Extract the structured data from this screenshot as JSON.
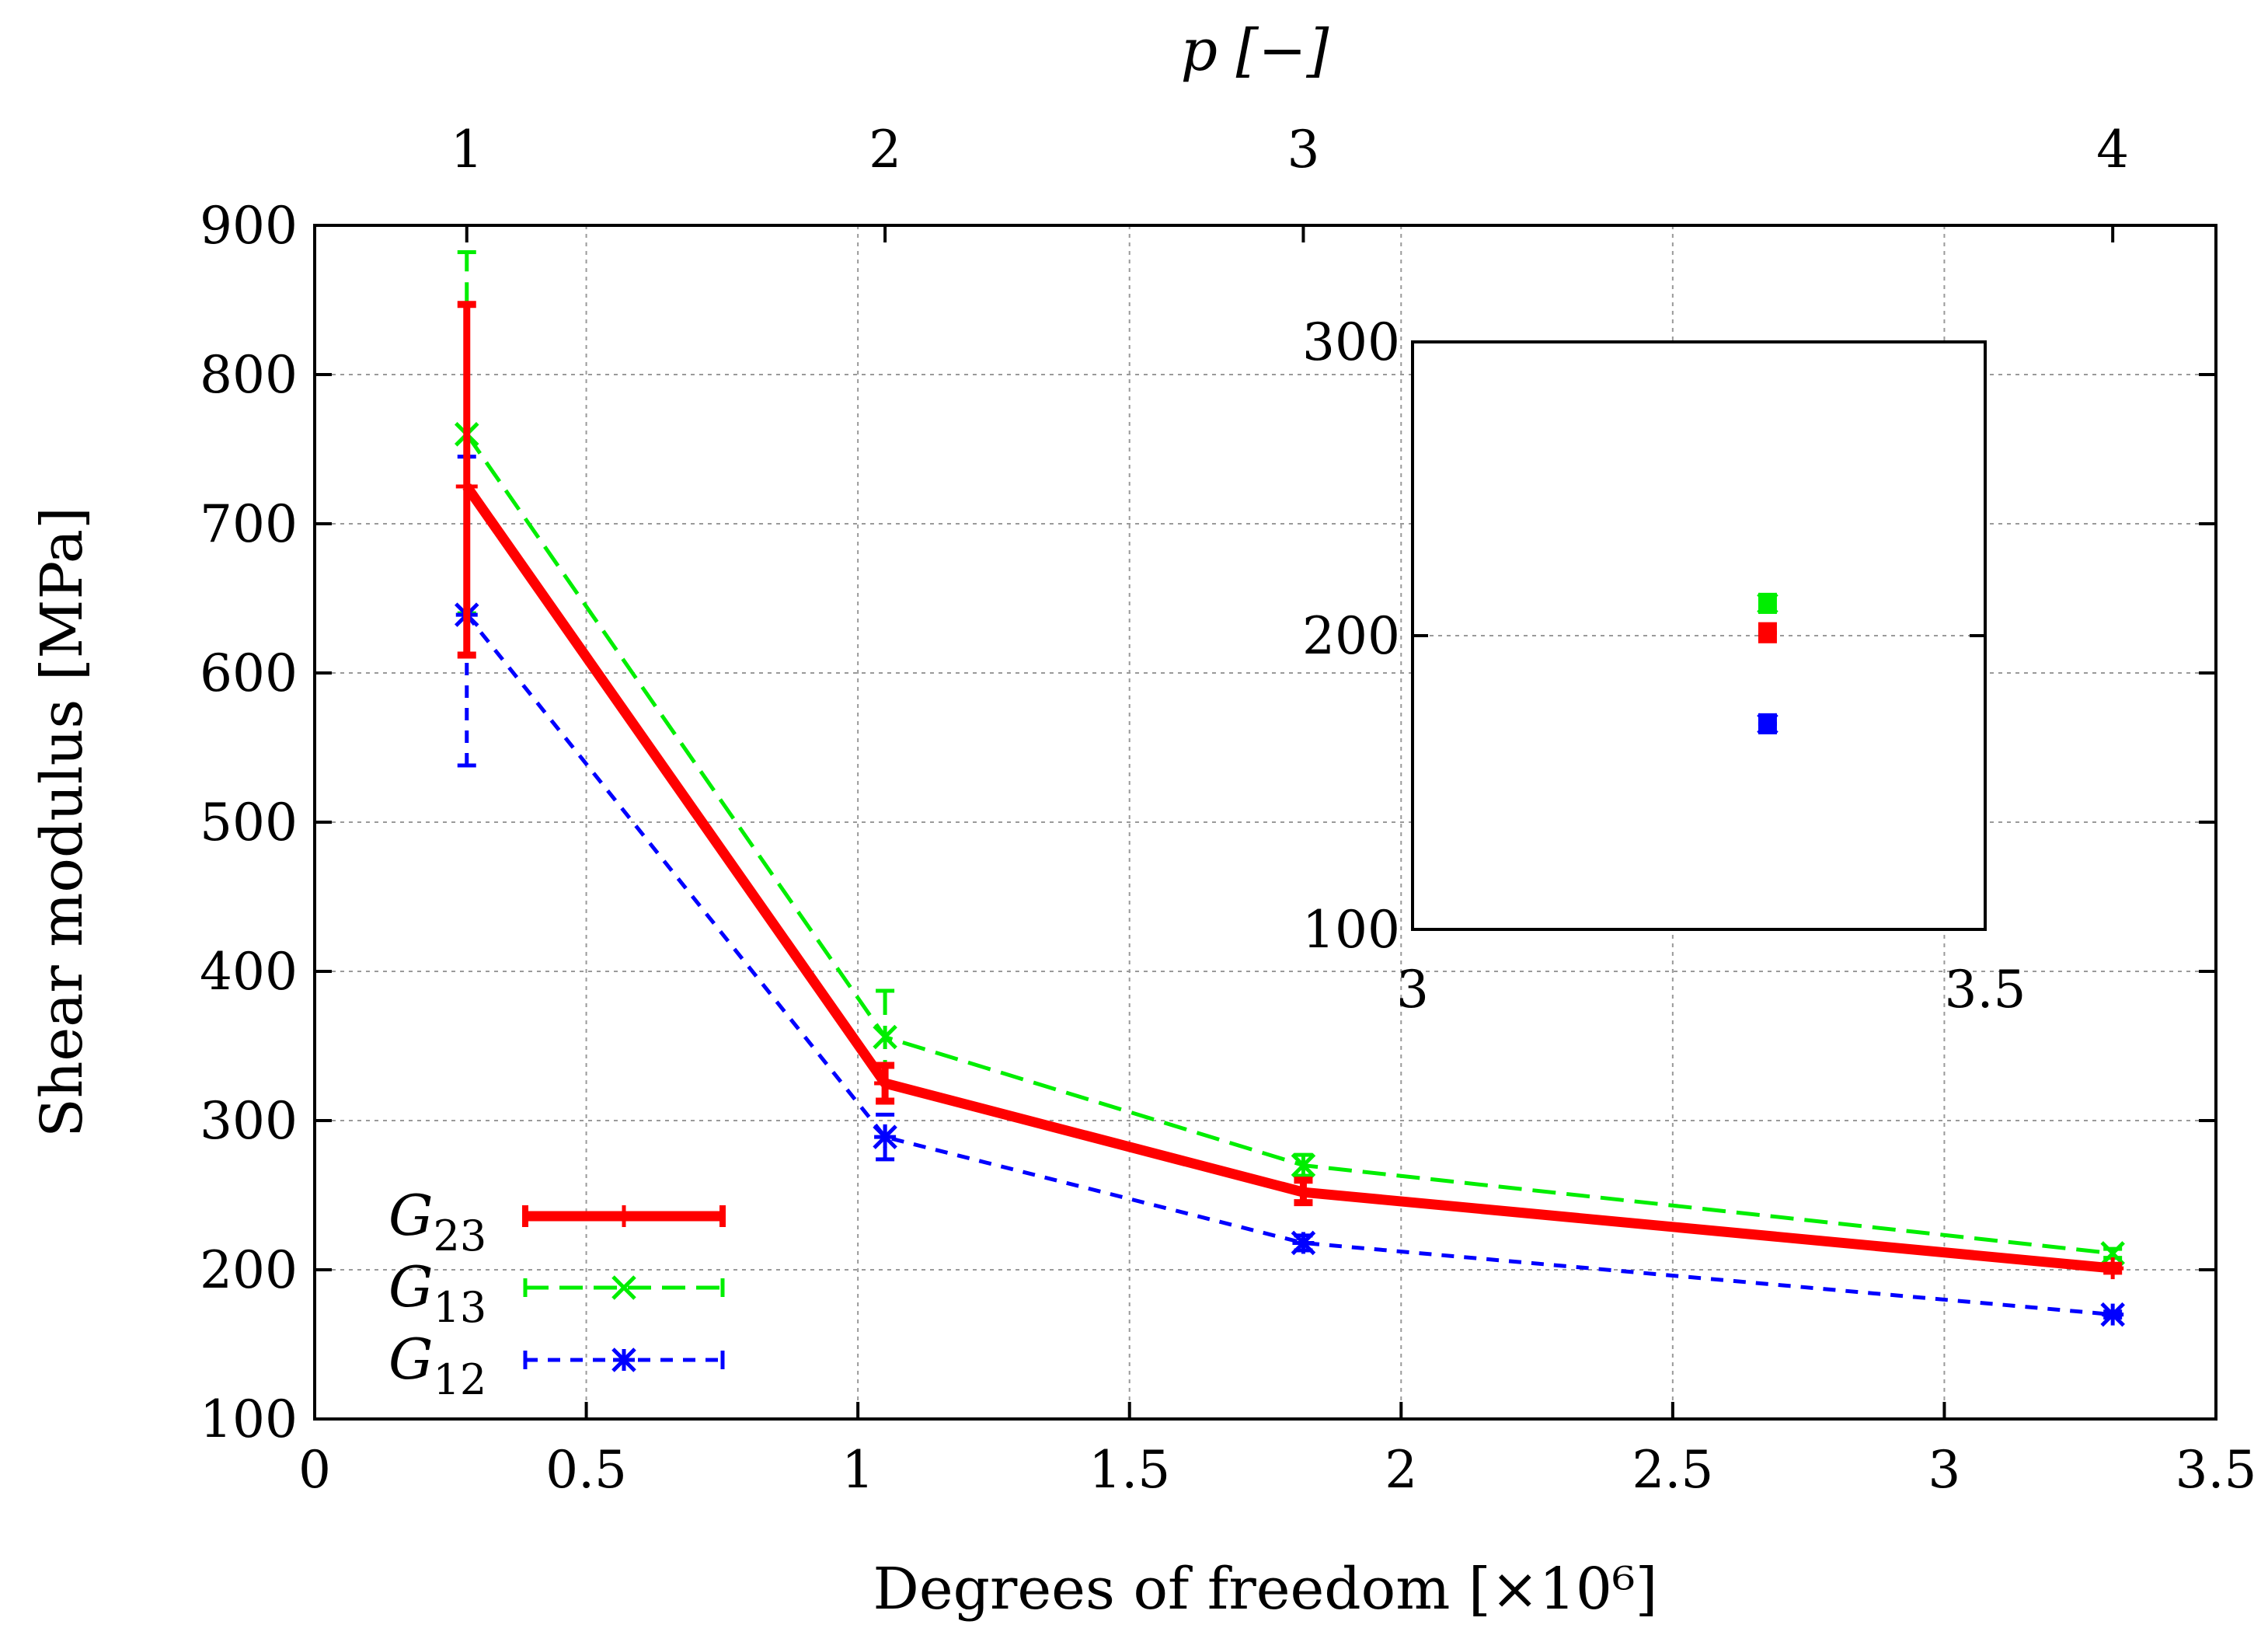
{
  "chart_data": {
    "type": "line",
    "xlabel": "Degrees of freedom [×10⁶]",
    "ylabel": "Shear modulus [MPa]",
    "top_xlabel": "p [−]",
    "xlim": [
      0,
      3.5
    ],
    "ylim": [
      100,
      900
    ],
    "x_ticks": [
      "0",
      "0.5",
      "1",
      "1.5",
      "2",
      "2.5",
      "3",
      "3.5"
    ],
    "y_ticks": [
      "100",
      "200",
      "300",
      "400",
      "500",
      "600",
      "700",
      "800",
      "900"
    ],
    "top_ticks": [
      {
        "label": "1",
        "x": 0.28
      },
      {
        "label": "2",
        "x": 1.05
      },
      {
        "label": "3",
        "x": 1.82
      },
      {
        "label": "4",
        "x": 3.31
      }
    ],
    "grid": true,
    "legend_position": "bottom-left",
    "series": [
      {
        "name": "G23",
        "name_base": "G",
        "name_sub": "23",
        "color": "#ff0000",
        "style": "solid",
        "marker": "plus",
        "x": [
          0.28,
          1.05,
          1.82,
          3.31
        ],
        "y": [
          725,
          325,
          252,
          201
        ],
        "err_low": [
          612,
          313,
          245,
          199
        ],
        "err_high": [
          847,
          337,
          260,
          203
        ]
      },
      {
        "name": "G13",
        "name_base": "G",
        "name_sub": "13",
        "color": "#00ee00",
        "style": "dashed",
        "marker": "x",
        "x": [
          0.28,
          1.05,
          1.82,
          3.31
        ],
        "y": [
          760,
          356,
          270,
          211
        ],
        "err_low": [
          640,
          325,
          263,
          208
        ],
        "err_high": [
          882,
          387,
          277,
          214
        ]
      },
      {
        "name": "G12",
        "name_base": "G",
        "name_sub": "12",
        "color": "#0000ff",
        "style": "short-dashed",
        "marker": "star",
        "x": [
          0.28,
          1.05,
          1.82,
          3.31
        ],
        "y": [
          639,
          289,
          218,
          170
        ],
        "err_low": [
          538,
          274,
          213,
          168
        ],
        "err_high": [
          745,
          304,
          223,
          172
        ]
      }
    ],
    "inset": {
      "xlim": [
        3.0,
        3.5
      ],
      "ylim": [
        100,
        300
      ],
      "x_ticks": [
        "3",
        "3.5"
      ],
      "y_ticks": [
        "100",
        "200",
        "300"
      ],
      "points": [
        {
          "series": "G23",
          "x": 3.31,
          "y": 201,
          "err": 2
        },
        {
          "series": "G13",
          "x": 3.31,
          "y": 211,
          "err": 2
        },
        {
          "series": "G12",
          "x": 3.31,
          "y": 170,
          "err": 2
        }
      ]
    }
  }
}
